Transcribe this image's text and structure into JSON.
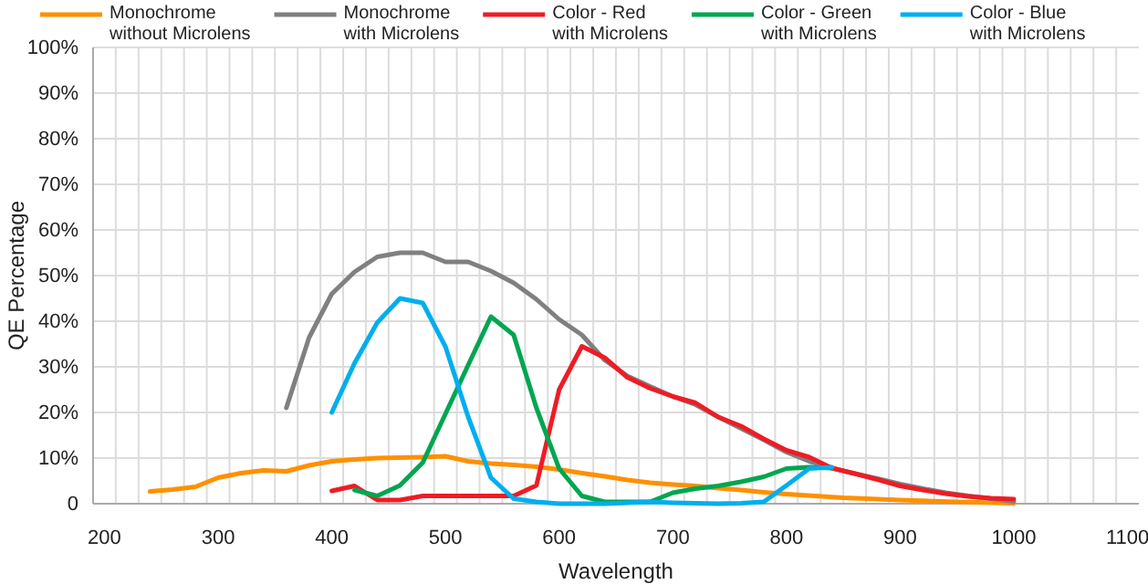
{
  "chart_data": {
    "type": "line",
    "xlabel": "Wavelength",
    "ylabel": "QE Percentage",
    "xlim": [
      190,
      1110
    ],
    "ylim": [
      0,
      100
    ],
    "xticks": [
      {
        "value": 210,
        "label": null
      },
      {
        "value": 230,
        "label": null
      },
      {
        "value": 250,
        "label": null
      },
      {
        "value": 270,
        "label": null
      },
      {
        "value": 290,
        "label": null
      },
      {
        "value": 310,
        "label": null
      },
      {
        "value": 330,
        "label": null
      },
      {
        "value": 350,
        "label": null
      },
      {
        "value": 370,
        "label": null
      },
      {
        "value": 390,
        "label": null
      },
      {
        "value": 410,
        "label": null
      },
      {
        "value": 430,
        "label": null
      },
      {
        "value": 450,
        "label": null
      },
      {
        "value": 470,
        "label": null
      },
      {
        "value": 490,
        "label": null
      },
      {
        "value": 510,
        "label": null
      },
      {
        "value": 530,
        "label": null
      },
      {
        "value": 550,
        "label": null
      },
      {
        "value": 570,
        "label": null
      },
      {
        "value": 590,
        "label": null
      },
      {
        "value": 610,
        "label": null
      },
      {
        "value": 630,
        "label": null
      },
      {
        "value": 650,
        "label": null
      },
      {
        "value": 670,
        "label": null
      },
      {
        "value": 690,
        "label": null
      },
      {
        "value": 710,
        "label": null
      },
      {
        "value": 730,
        "label": null
      },
      {
        "value": 750,
        "label": null
      },
      {
        "value": 770,
        "label": null
      },
      {
        "value": 790,
        "label": null
      },
      {
        "value": 810,
        "label": null
      },
      {
        "value": 830,
        "label": null
      },
      {
        "value": 850,
        "label": null
      },
      {
        "value": 870,
        "label": null
      },
      {
        "value": 890,
        "label": null
      },
      {
        "value": 910,
        "label": null
      },
      {
        "value": 930,
        "label": null
      },
      {
        "value": 950,
        "label": null
      },
      {
        "value": 970,
        "label": null
      },
      {
        "value": 990,
        "label": null
      },
      {
        "value": 1010,
        "label": null
      },
      {
        "value": 1030,
        "label": null
      },
      {
        "value": 1050,
        "label": null
      },
      {
        "value": 1070,
        "label": null
      },
      {
        "value": 1090,
        "label": null
      },
      200,
      300,
      400,
      500,
      600,
      700,
      800,
      900,
      1000,
      1100
    ],
    "yticks": [
      0,
      {
        "value": 10,
        "label": "10%"
      },
      {
        "value": 20,
        "label": "20%"
      },
      {
        "value": 30,
        "label": "30%"
      },
      {
        "value": 40,
        "label": "40%"
      },
      {
        "value": 50,
        "label": "50%"
      },
      {
        "value": 60,
        "label": "60%"
      },
      {
        "value": 70,
        "label": "70%"
      },
      {
        "value": 80,
        "label": "80%"
      },
      {
        "value": 90,
        "label": "90%"
      },
      {
        "value": 100,
        "label": "100%"
      }
    ],
    "grid": true,
    "legend": "top",
    "marker": "none",
    "line_style": "solid",
    "series": [
      {
        "name": "Monochrome\nwithout Microlens",
        "color": "#ff9000",
        "x": [
          240,
          260,
          280,
          300,
          320,
          340,
          360,
          380,
          400,
          420,
          440,
          460,
          480,
          500,
          520,
          540,
          560,
          580,
          600,
          620,
          640,
          660,
          680,
          700,
          720,
          740,
          760,
          780,
          800,
          850,
          900,
          950,
          1000
        ],
        "values": [
          2.7,
          3.1,
          3.7,
          5.7,
          6.7,
          7.3,
          7.1,
          8.4,
          9.3,
          9.7,
          10,
          10.1,
          10.2,
          10.4,
          9.3,
          8.8,
          8.5,
          8.1,
          7.5,
          6.7,
          6,
          5.2,
          4.6,
          4.2,
          3.9,
          3.4,
          3.0,
          2.5,
          2.1,
          1.3,
          0.8,
          0.4,
          0.1
        ]
      },
      {
        "name": "Monochrome\nwith Microlens",
        "color": "#808080",
        "x": [
          360,
          380,
          400,
          420,
          440,
          460,
          480,
          500,
          520,
          540,
          560,
          580,
          600,
          620,
          640,
          660,
          680,
          700,
          720,
          740,
          760,
          780,
          800,
          820,
          840,
          860,
          880,
          900,
          920,
          940,
          960,
          980,
          1000
        ],
        "values": [
          21,
          36.4,
          46,
          50.8,
          54.1,
          55,
          55,
          53,
          53,
          51,
          48.4,
          44.8,
          40.4,
          37,
          31.5,
          28,
          25.7,
          23.5,
          21.7,
          19,
          16.5,
          14,
          11.3,
          9.3,
          7.8,
          6.6,
          5.5,
          4.3,
          3.3,
          2.4,
          1.7,
          1.1,
          0.5
        ]
      },
      {
        "name": "Color - Red\nwith Microlens",
        "color": "#ee1c25",
        "x": [
          400,
          420,
          440,
          460,
          480,
          500,
          520,
          540,
          560,
          580,
          600,
          620,
          640,
          660,
          680,
          700,
          720,
          740,
          760,
          780,
          800,
          820,
          840,
          860,
          880,
          900,
          920,
          940,
          960,
          980,
          1000
        ],
        "values": [
          2.8,
          3.9,
          0.8,
          0.8,
          1.7,
          1.7,
          1.7,
          1.7,
          1.7,
          4,
          25,
          34.5,
          32,
          27.7,
          25.3,
          23.5,
          22.1,
          19,
          17,
          14.2,
          11.7,
          10.2,
          7.8,
          6.6,
          5.3,
          3.9,
          3.0,
          2.2,
          1.6,
          1.2,
          1.0
        ]
      },
      {
        "name": "Color - Green\nwith Microlens",
        "color": "#00a650",
        "x": [
          420,
          440,
          460,
          480,
          500,
          520,
          540,
          560,
          580,
          600,
          620,
          640,
          660,
          680,
          700,
          720,
          740,
          760,
          780,
          800,
          820,
          840
        ],
        "values": [
          3,
          1.7,
          4,
          9,
          19.7,
          30.4,
          41,
          37,
          21,
          7.7,
          1.7,
          0.4,
          0.4,
          0.4,
          2.4,
          3.3,
          3.9,
          4.8,
          5.9,
          7.7,
          8,
          7.8
        ]
      },
      {
        "name": "Color - Blue\nwith Microlens",
        "color": "#00aeef",
        "x": [
          400,
          420,
          440,
          460,
          480,
          500,
          520,
          540,
          560,
          580,
          600,
          620,
          640,
          660,
          680,
          700,
          720,
          740,
          760,
          780,
          800,
          820,
          840
        ],
        "values": [
          20,
          30.8,
          39.7,
          45,
          44,
          34.4,
          19,
          5.7,
          1.1,
          0.4,
          0,
          0,
          0,
          0.2,
          0.4,
          0.2,
          0.1,
          0,
          0.1,
          0.4,
          4,
          7.7,
          8
        ]
      }
    ]
  }
}
